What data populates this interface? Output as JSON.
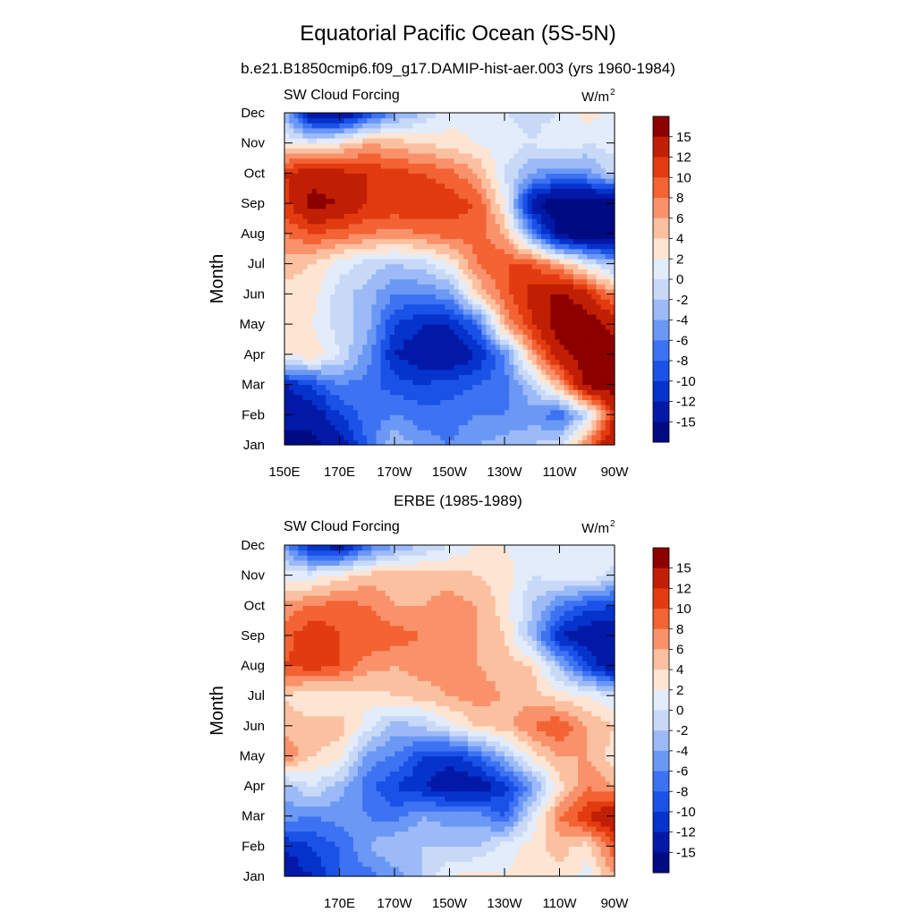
{
  "figure": {
    "title": "Equatorial Pacific Ocean (5S-5N)"
  },
  "chart_data": [
    {
      "type": "heatmap",
      "title": "b.e21.B1850cmip6.f09_g17.DAMIP-hist-aer.003 (yrs 1960-1984)",
      "left_label": "SW Cloud Forcing",
      "units": "W/m",
      "units_sup": "2",
      "ylabel": "Month",
      "xlabel": "",
      "x_ticks": [
        "150E",
        "170E",
        "170W",
        "150W",
        "130W",
        "110W",
        "90W"
      ],
      "y_ticks": [
        "Jan",
        "Feb",
        "Mar",
        "Apr",
        "May",
        "Jun",
        "Jul",
        "Aug",
        "Sep",
        "Oct",
        "Nov",
        "Dec"
      ],
      "xlim": [
        150,
        270
      ],
      "ylim": [
        1,
        12
      ],
      "colorbar_labels": [
        "15",
        "12",
        "10",
        "8",
        "6",
        "4",
        "2",
        "0",
        "-2",
        "-4",
        "-6",
        "-8",
        "-10",
        "-12",
        "-15"
      ],
      "field_x": [
        150,
        160,
        170,
        180,
        190,
        200,
        210,
        220,
        230,
        240,
        250,
        260,
        270
      ],
      "field_months": [
        1,
        2,
        3,
        4,
        5,
        6,
        7,
        8,
        9,
        10,
        11,
        12
      ],
      "values": [
        [
          -16,
          -16,
          -14,
          -8,
          -2,
          -5,
          -6,
          -4,
          -3,
          -2,
          0,
          8,
          16
        ],
        [
          -14,
          -14,
          -10,
          -7,
          -6,
          -7,
          -7,
          -6,
          -6,
          -5,
          -8,
          -1,
          12
        ],
        [
          -12,
          -10,
          -6,
          -7,
          -9,
          -10,
          -9,
          -8,
          -7,
          -2,
          6,
          16,
          17
        ],
        [
          2,
          4,
          0,
          -5,
          -12,
          -14,
          -15,
          -12,
          -6,
          6,
          14,
          17,
          17
        ],
        [
          2,
          2,
          -1,
          -3,
          -10,
          -12,
          -12,
          -8,
          6,
          12,
          17,
          17,
          14
        ],
        [
          3,
          3,
          -1,
          -3,
          -6,
          -6,
          -5,
          4,
          9,
          13,
          16,
          13,
          7
        ],
        [
          5,
          4,
          1,
          -1,
          -2,
          -1,
          2,
          8,
          10,
          10,
          6,
          1,
          -3
        ],
        [
          8,
          10,
          9,
          8,
          7,
          8,
          9,
          9,
          6,
          -5,
          -16,
          -18,
          -18
        ],
        [
          11,
          16,
          15,
          12,
          12,
          12,
          11,
          10,
          2,
          -14,
          -18,
          -18,
          -18
        ],
        [
          12,
          14,
          13,
          12,
          11,
          10,
          9,
          6,
          0,
          -4,
          -6,
          -5,
          -1
        ],
        [
          2,
          1,
          3,
          6,
          5,
          4,
          3,
          2,
          1,
          0,
          2,
          0,
          1
        ],
        [
          -3,
          -15,
          -16,
          -10,
          -5,
          -2,
          1,
          1,
          0,
          -1,
          0,
          3,
          1
        ]
      ]
    },
    {
      "type": "heatmap",
      "title": "ERBE (1985-1989)",
      "left_label": "SW Cloud Forcing",
      "units": "W/m",
      "units_sup": "2",
      "ylabel": "Month",
      "xlabel": "",
      "x_ticks": [
        "170E",
        "170W",
        "150W",
        "130W",
        "110W",
        "90W"
      ],
      "y_ticks": [
        "Jan",
        "Feb",
        "Mar",
        "Apr",
        "May",
        "Jun",
        "Jul",
        "Aug",
        "Sep",
        "Oct",
        "Nov",
        "Dec"
      ],
      "xlim": [
        150,
        270
      ],
      "ylim": [
        1,
        12
      ],
      "colorbar_labels": [
        "15",
        "12",
        "10",
        "8",
        "6",
        "4",
        "2",
        "0",
        "-2",
        "-4",
        "-6",
        "-8",
        "-10",
        "-12",
        "-15"
      ],
      "field_x": [
        150,
        160,
        170,
        180,
        190,
        200,
        210,
        220,
        230,
        240,
        250,
        260,
        270
      ],
      "field_months": [
        1,
        2,
        3,
        4,
        5,
        6,
        7,
        8,
        9,
        10,
        11,
        12
      ],
      "values": [
        [
          -14,
          -12,
          -8,
          -7,
          -5,
          -2,
          2,
          3,
          2,
          3,
          3,
          1,
          6
        ],
        [
          -12,
          -10,
          -8,
          -4,
          -2,
          -2,
          -2,
          -2,
          1,
          3,
          5,
          3,
          10
        ],
        [
          -5,
          -6,
          -5,
          -6,
          -7,
          -4,
          -5,
          -5,
          -8,
          0,
          8,
          12,
          15
        ],
        [
          -3,
          0,
          -3,
          -7,
          -10,
          -12,
          -14,
          -14,
          -11,
          -5,
          3,
          8,
          6
        ],
        [
          8,
          4,
          3,
          -5,
          -6,
          -10,
          -11,
          -8,
          -3,
          3,
          6,
          6,
          3
        ],
        [
          5,
          5,
          5,
          1,
          -3,
          -2,
          1,
          4,
          5,
          8,
          10,
          6,
          4
        ],
        [
          4,
          2,
          2,
          3,
          4,
          5,
          6,
          7,
          6,
          5,
          3,
          2,
          0
        ],
        [
          10,
          11,
          10,
          7,
          6,
          7,
          7,
          6,
          5,
          4,
          -3,
          -10,
          -15
        ],
        [
          9,
          12,
          10,
          10,
          9,
          8,
          7,
          6,
          4,
          -3,
          -12,
          -14,
          -14
        ],
        [
          7,
          8,
          9,
          8,
          6,
          6,
          7,
          6,
          3,
          -2,
          -6,
          -9,
          -10
        ],
        [
          1,
          1,
          3,
          5,
          5,
          5,
          5,
          4,
          3,
          0,
          1,
          2,
          -1
        ],
        [
          -5,
          -12,
          -14,
          -8,
          -4,
          -2,
          0,
          2,
          2,
          1,
          1,
          2,
          1
        ]
      ]
    }
  ]
}
